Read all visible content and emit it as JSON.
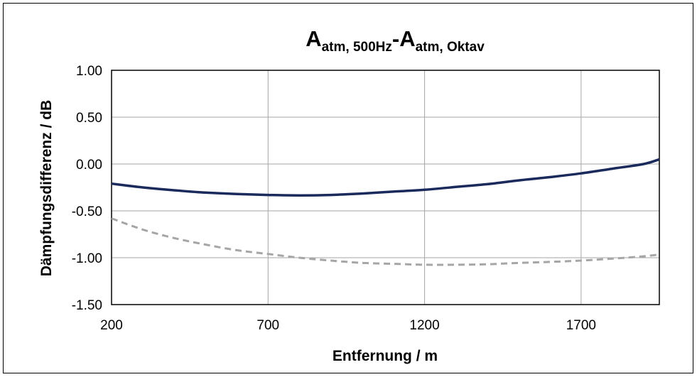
{
  "chart_data": {
    "type": "line",
    "title": {
      "part1_main": "A",
      "part1_sub": "atm, 500Hz",
      "separator": "-",
      "part2_main": "A",
      "part2_sub": "atm, Oktav"
    },
    "xlabel": "Entfernung / m",
    "ylabel": "Dämpfungsdifferenz / dB",
    "xlim": [
      200,
      1950
    ],
    "ylim": [
      -1.5,
      1.0
    ],
    "x_ticks": [
      200,
      700,
      1200,
      1700
    ],
    "x_tick_labels": [
      "200",
      "700",
      "1200",
      "1700"
    ],
    "y_ticks": [
      1.0,
      0.5,
      0.0,
      -0.5,
      -1.0,
      -1.5
    ],
    "y_tick_labels": [
      "1.00",
      "0.50",
      "0.00",
      "-0.50",
      "-1.00",
      "-1.50"
    ],
    "grid": true,
    "series": [
      {
        "color": "#1b2a5c",
        "dash": "solid",
        "x": [
          200,
          300,
          400,
          500,
          600,
          700,
          800,
          900,
          1000,
          1100,
          1200,
          1300,
          1400,
          1500,
          1600,
          1700,
          1800,
          1900,
          1950
        ],
        "y": [
          -0.21,
          -0.25,
          -0.28,
          -0.305,
          -0.32,
          -0.33,
          -0.335,
          -0.33,
          -0.315,
          -0.295,
          -0.275,
          -0.245,
          -0.215,
          -0.175,
          -0.14,
          -0.1,
          -0.05,
          0.0,
          0.05
        ]
      },
      {
        "color": "#a6a6a6",
        "dash": "dashed",
        "x": [
          200,
          300,
          400,
          500,
          600,
          700,
          800,
          900,
          1000,
          1100,
          1200,
          1300,
          1400,
          1500,
          1600,
          1700,
          1800,
          1900,
          1950
        ],
        "y": [
          -0.58,
          -0.7,
          -0.79,
          -0.86,
          -0.92,
          -0.96,
          -1.0,
          -1.03,
          -1.055,
          -1.065,
          -1.075,
          -1.075,
          -1.07,
          -1.055,
          -1.045,
          -1.03,
          -1.01,
          -0.985,
          -0.965
        ]
      }
    ]
  }
}
